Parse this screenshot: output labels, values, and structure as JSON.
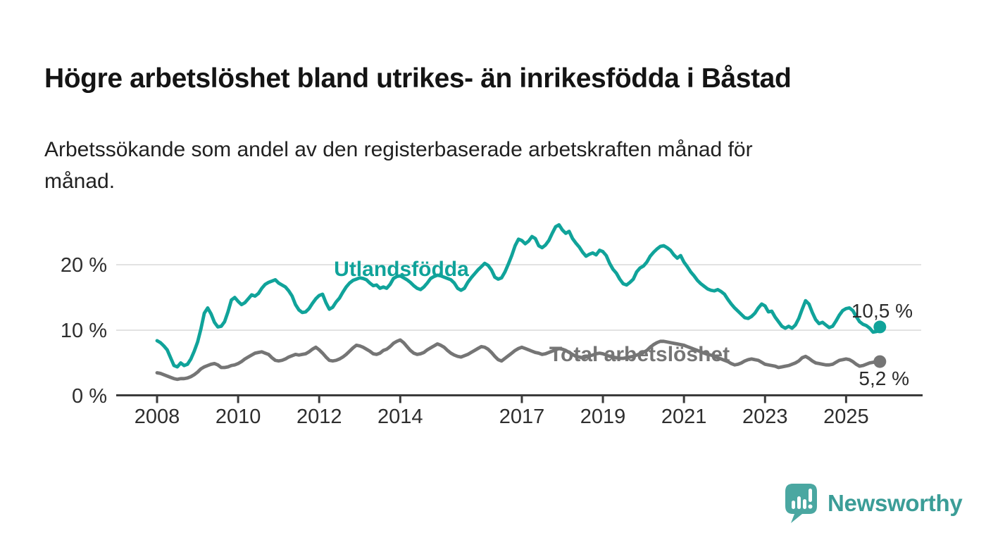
{
  "header": {
    "title": "Högre arbetslöshet bland utrikes- än inrikesfödda i Båstad",
    "subtitle_line1": "Arbetssökande som andel av den registerbaserade arbetskraften månad för",
    "subtitle_line2": "månad."
  },
  "chart_data": {
    "type": "line",
    "title": "Högre arbetslöshet bland utrikes- än inrikesfödda i Båstad",
    "xlabel": "",
    "ylabel": "",
    "grid": true,
    "legend_position": "inline-labels",
    "x_start_year": 2008,
    "x_step_years": 0.0833,
    "xlim": [
      2007,
      2026.8
    ],
    "ylim": [
      0,
      27.5
    ],
    "x_ticks": [
      {
        "year": 2008,
        "label": "2008"
      },
      {
        "year": 2010,
        "label": "2010"
      },
      {
        "year": 2012,
        "label": "2012"
      },
      {
        "year": 2014,
        "label": "2014"
      },
      {
        "year": 2017,
        "label": "2017"
      },
      {
        "year": 2019,
        "label": "2019"
      },
      {
        "year": 2021,
        "label": "2021"
      },
      {
        "year": 2023,
        "label": "2023"
      },
      {
        "year": 2025,
        "label": "2025"
      }
    ],
    "y_ticks": [
      {
        "value": 0,
        "label": "0 %"
      },
      {
        "value": 10,
        "label": "10 %"
      },
      {
        "value": 20,
        "label": "20 %"
      }
    ],
    "series": [
      {
        "name": "Utlandsfödda",
        "color": "#10a39a",
        "end_label": "10,5 %",
        "end_value": 10.5,
        "values": [
          8.4,
          8.1,
          7.6,
          7.0,
          5.8,
          4.6,
          4.4,
          5.0,
          4.6,
          4.8,
          5.6,
          6.8,
          8.2,
          10.2,
          12.6,
          13.4,
          12.5,
          11.2,
          10.5,
          10.6,
          11.3,
          12.8,
          14.6,
          15.0,
          14.4,
          13.9,
          14.2,
          14.8,
          15.4,
          15.2,
          15.6,
          16.4,
          17.0,
          17.3,
          17.5,
          17.7,
          17.2,
          16.9,
          16.6,
          16.0,
          15.2,
          13.9,
          13.1,
          12.7,
          12.8,
          13.3,
          14.1,
          14.8,
          15.3,
          15.5,
          14.2,
          13.2,
          13.5,
          14.3,
          14.9,
          15.8,
          16.6,
          17.2,
          17.6,
          17.8,
          18.0,
          17.9,
          17.7,
          17.2,
          16.8,
          16.9,
          16.4,
          16.6,
          16.4,
          17.0,
          17.9,
          18.2,
          18.3,
          18.0,
          17.7,
          17.3,
          16.8,
          16.4,
          16.2,
          16.6,
          17.2,
          17.9,
          18.2,
          18.4,
          18.3,
          18.1,
          17.9,
          17.7,
          17.2,
          16.4,
          16.1,
          16.4,
          17.3,
          18.0,
          18.6,
          19.2,
          19.7,
          20.2,
          19.9,
          19.2,
          18.1,
          17.8,
          18.0,
          18.9,
          20.1,
          21.4,
          22.9,
          23.9,
          23.7,
          23.2,
          23.6,
          24.3,
          24.0,
          22.9,
          22.6,
          23.0,
          23.7,
          24.8,
          25.8,
          26.1,
          25.3,
          24.8,
          25.1,
          24.0,
          23.3,
          22.7,
          21.9,
          21.3,
          21.6,
          21.8,
          21.5,
          22.2,
          22.0,
          21.4,
          20.2,
          19.3,
          18.7,
          17.8,
          17.1,
          16.9,
          17.3,
          17.8,
          18.9,
          19.5,
          19.8,
          20.4,
          21.3,
          21.9,
          22.4,
          22.8,
          22.9,
          22.6,
          22.2,
          21.5,
          21.0,
          21.4,
          20.4,
          19.7,
          18.9,
          18.3,
          17.6,
          17.1,
          16.7,
          16.3,
          16.1,
          16.0,
          16.2,
          15.9,
          15.5,
          14.7,
          14.0,
          13.4,
          12.9,
          12.4,
          11.9,
          11.8,
          12.1,
          12.6,
          13.4,
          14.0,
          13.7,
          12.8,
          12.9,
          12.0,
          11.3,
          10.6,
          10.3,
          10.6,
          10.3,
          10.8,
          11.8,
          13.2,
          14.5,
          14.0,
          12.7,
          11.6,
          11.0,
          11.2,
          10.8,
          10.4,
          10.6,
          11.4,
          12.3,
          13.0,
          13.3,
          13.4,
          13.0,
          12.1,
          11.3,
          10.9,
          10.7,
          10.3,
          9.7,
          9.8,
          10.5
        ]
      },
      {
        "name": "Total arbetslöshet",
        "color": "#757575",
        "end_label": "5,2 %",
        "end_value": 5.2,
        "values": [
          3.5,
          3.4,
          3.2,
          3.0,
          2.8,
          2.6,
          2.5,
          2.6,
          2.6,
          2.7,
          2.9,
          3.2,
          3.6,
          4.1,
          4.4,
          4.6,
          4.8,
          4.9,
          4.7,
          4.3,
          4.3,
          4.4,
          4.6,
          4.7,
          4.9,
          5.2,
          5.6,
          5.9,
          6.2,
          6.5,
          6.6,
          6.7,
          6.5,
          6.3,
          5.8,
          5.4,
          5.3,
          5.4,
          5.6,
          5.9,
          6.1,
          6.3,
          6.2,
          6.3,
          6.4,
          6.7,
          7.1,
          7.4,
          7.0,
          6.5,
          5.9,
          5.4,
          5.3,
          5.4,
          5.6,
          5.9,
          6.3,
          6.8,
          7.3,
          7.7,
          7.6,
          7.4,
          7.1,
          6.8,
          6.4,
          6.3,
          6.5,
          6.9,
          7.1,
          7.5,
          8.0,
          8.3,
          8.5,
          8.1,
          7.5,
          6.9,
          6.5,
          6.3,
          6.4,
          6.6,
          7.0,
          7.3,
          7.6,
          7.9,
          7.7,
          7.4,
          6.9,
          6.5,
          6.2,
          6.0,
          5.9,
          6.1,
          6.3,
          6.6,
          6.9,
          7.2,
          7.5,
          7.4,
          7.1,
          6.6,
          6.0,
          5.5,
          5.3,
          5.7,
          6.1,
          6.5,
          6.9,
          7.2,
          7.4,
          7.2,
          7.0,
          6.8,
          6.6,
          6.5,
          6.3,
          6.4,
          6.6,
          6.8,
          7.0,
          7.2,
          7.1,
          6.9,
          6.6,
          6.3,
          6.0,
          5.9,
          5.8,
          5.9,
          6.1,
          6.2,
          6.4,
          6.5,
          6.4,
          6.2,
          6.0,
          5.9,
          5.8,
          5.7,
          5.7,
          5.8,
          5.9,
          6.0,
          6.2,
          6.4,
          6.6,
          6.9,
          7.4,
          7.8,
          8.1,
          8.3,
          8.3,
          8.2,
          8.1,
          8.0,
          7.9,
          7.8,
          7.7,
          7.5,
          7.3,
          7.1,
          6.9,
          6.7,
          6.5,
          6.3,
          6.2,
          6.0,
          5.8,
          5.6,
          5.4,
          5.2,
          4.9,
          4.7,
          4.8,
          5.0,
          5.3,
          5.5,
          5.6,
          5.5,
          5.4,
          5.1,
          4.8,
          4.7,
          4.6,
          4.5,
          4.3,
          4.4,
          4.5,
          4.6,
          4.8,
          5.0,
          5.3,
          5.8,
          6.0,
          5.7,
          5.3,
          5.0,
          4.9,
          4.8,
          4.7,
          4.7,
          4.8,
          5.1,
          5.4,
          5.5,
          5.6,
          5.5,
          5.2,
          4.8,
          4.5,
          4.6,
          4.8,
          5.0,
          5.1,
          5.2,
          5.2
        ]
      }
    ]
  },
  "footer": {
    "brand": "Newsworthy"
  },
  "colors": {
    "background": "#ffffff",
    "title_text": "#141414",
    "axis_text": "#2e2e2e",
    "gridline": "#d9d9d9",
    "axis_line": "#3a3a3a",
    "series_utlandsfodda": "#10a39a",
    "series_total": "#757575",
    "logo_bubble": "#4aa7a1",
    "logo_text": "#3b9d97"
  }
}
